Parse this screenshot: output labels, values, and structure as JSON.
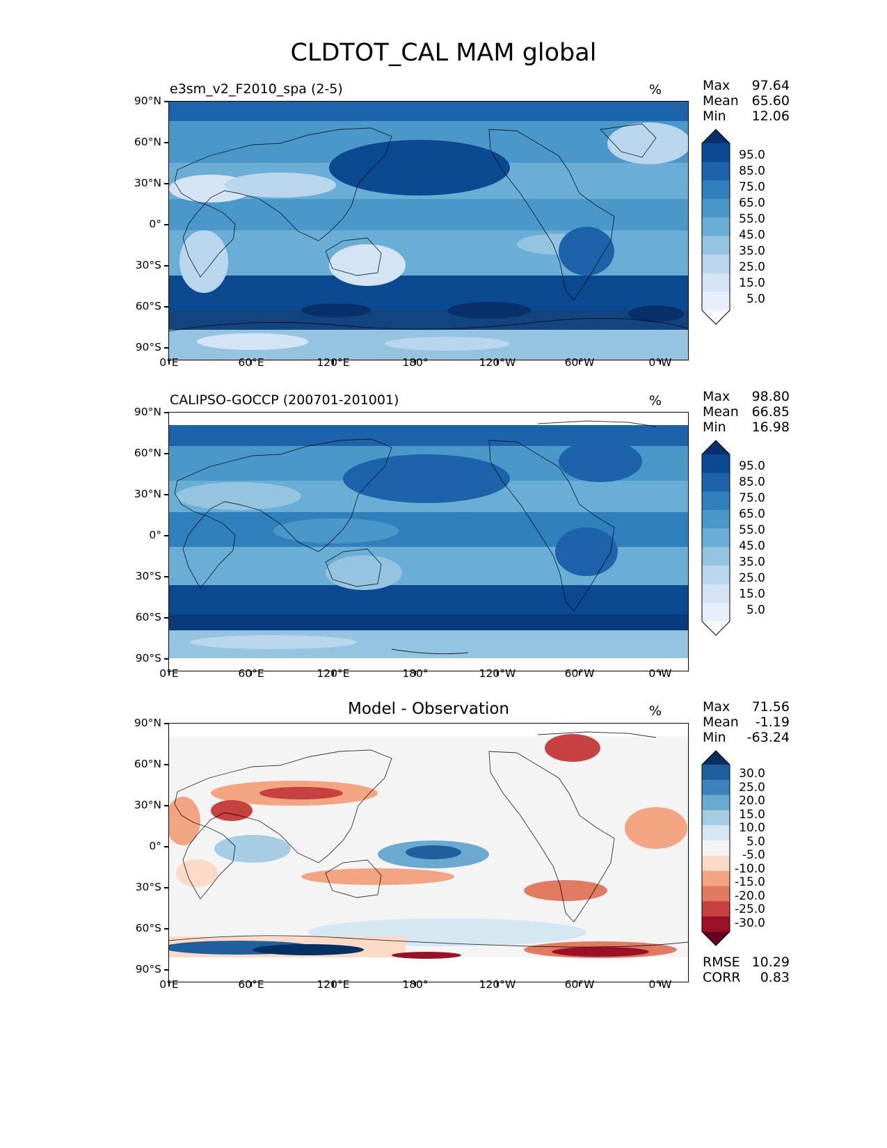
{
  "title": "CLDTOT_CAL MAM global",
  "axes": {
    "lat_labels": [
      "90°N",
      "60°N",
      "30°N",
      "0°",
      "30°S",
      "60°S",
      "90°S"
    ],
    "lon_labels": [
      "0°E",
      "60°E",
      "120°E",
      "180°",
      "120°W",
      "60°W",
      "0°W"
    ]
  },
  "panels": [
    {
      "name": "model",
      "left_title": "e3sm_v2_F2010_spa (2-5)",
      "center_title": "",
      "units": "%",
      "stats": [
        {
          "label": "Max",
          "value": "97.64"
        },
        {
          "label": "Mean",
          "value": "65.60"
        },
        {
          "label": "Min",
          "value": "12.06"
        }
      ],
      "colorbar": {
        "labels": [
          "95.0",
          "85.0",
          "75.0",
          "65.0",
          "55.0",
          "45.0",
          "35.0",
          "25.0",
          "15.0",
          "5.0"
        ],
        "colors": [
          "#08306b",
          "#0b4a90",
          "#1c63ab",
          "#3080bd",
          "#4a98c9",
          "#6aaed6",
          "#94c4df",
          "#b9d6ec",
          "#d4e4f4",
          "#e7f0fa",
          "#f7fbff"
        ]
      }
    },
    {
      "name": "observation",
      "left_title": "CALIPSO-GOCCP (200701-201001)",
      "center_title": "",
      "units": "%",
      "stats": [
        {
          "label": "Max",
          "value": "98.80"
        },
        {
          "label": "Mean",
          "value": "66.85"
        },
        {
          "label": "Min",
          "value": "16.98"
        }
      ],
      "colorbar": {
        "labels": [
          "95.0",
          "85.0",
          "75.0",
          "65.0",
          "55.0",
          "45.0",
          "35.0",
          "25.0",
          "15.0",
          "5.0"
        ],
        "colors": [
          "#08306b",
          "#0b4a90",
          "#1c63ab",
          "#3080bd",
          "#4a98c9",
          "#6aaed6",
          "#94c4df",
          "#b9d6ec",
          "#d4e4f4",
          "#e7f0fa",
          "#f7fbff"
        ]
      }
    },
    {
      "name": "difference",
      "left_title": "",
      "center_title": "Model - Observation",
      "units": "%",
      "stats": [
        {
          "label": "Max",
          "value": "71.56"
        },
        {
          "label": "Mean",
          "value": "-1.19"
        },
        {
          "label": "Min",
          "value": "-63.24"
        }
      ],
      "colorbar": {
        "labels": [
          "30.0",
          "25.0",
          "20.0",
          "15.0",
          "10.0",
          "5.0",
          "-5.0",
          "-10.0",
          "-15.0",
          "-20.0",
          "-25.0",
          "-30.0"
        ],
        "colors": [
          "#053061",
          "#1f5f9e",
          "#3a83bb",
          "#6aa9d0",
          "#a6cde3",
          "#d5e7f1",
          "#f4f4f4",
          "#fbdac7",
          "#f3a582",
          "#e07b62",
          "#c6413f",
          "#9c1027",
          "#67001f"
        ]
      },
      "metrics": [
        {
          "label": "RMSE",
          "value": "10.29"
        },
        {
          "label": "CORR",
          "value": "0.83"
        }
      ]
    }
  ]
}
